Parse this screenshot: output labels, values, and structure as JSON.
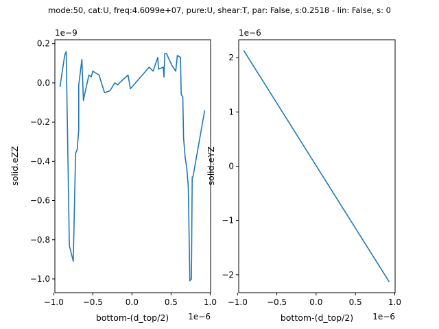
{
  "figure": {
    "suptitle": "mode:50, cat:U, freq:4.6099e+07, pure:U, shear:T, par: False, s:0.2518 - lin: False, s: 0"
  },
  "chart_data": [
    {
      "type": "line",
      "xlabel": "bottom-(d_top/2)",
      "ylabel": "solid.eZZ",
      "x_offset_label": "1e−6",
      "y_offset_label": "1e−9",
      "xlim": [
        -0.985,
        1.005
      ],
      "ylim": [
        -1.07,
        0.22
      ],
      "xticks": [
        -1.0,
        -0.5,
        0.0,
        0.5,
        1.0
      ],
      "xtick_labels": [
        "−1.0",
        "−0.5",
        "0.0",
        "0.5",
        "1.0"
      ],
      "yticks": [
        -1.0,
        -0.8,
        -0.6,
        -0.4,
        -0.2,
        0.0,
        0.2
      ],
      "ytick_labels": [
        "−1.0",
        "−0.8",
        "−0.6",
        "−0.4",
        "−0.2",
        "0.0",
        "0.2"
      ],
      "color": "#1f77b4",
      "grid": false,
      "series": [
        {
          "x": [
            -0.92,
            -0.86,
            -0.84,
            -0.8,
            -0.75,
            -0.72,
            -0.7,
            -0.68,
            -0.68,
            -0.64,
            -0.62,
            -0.6,
            -0.55,
            -0.52,
            -0.5,
            -0.42,
            -0.35,
            -0.28,
            -0.22,
            -0.18,
            -0.16,
            -0.05,
            -0.02,
            0.22,
            0.27,
            0.33,
            0.34,
            0.4,
            0.41,
            0.42,
            0.44,
            0.51,
            0.56,
            0.58,
            0.62,
            0.63,
            0.65,
            0.66,
            0.68,
            0.7,
            0.72,
            0.74,
            0.76,
            0.76,
            0.77,
            0.78,
            0.93
          ],
          "y": [
            -0.02,
            0.14,
            0.16,
            -0.83,
            -0.91,
            -0.36,
            -0.34,
            -0.24,
            -0.01,
            0.12,
            -0.09,
            -0.05,
            0.04,
            0.03,
            0.06,
            0.04,
            -0.05,
            -0.04,
            0.0,
            -0.01,
            0.0,
            0.04,
            -0.03,
            0.08,
            0.06,
            0.13,
            0.07,
            0.08,
            0.03,
            0.15,
            0.15,
            0.09,
            0.06,
            0.14,
            0.13,
            -0.06,
            -0.07,
            -0.28,
            -0.38,
            -0.43,
            -0.53,
            -1.01,
            -1.0,
            -0.98,
            -0.48,
            -0.48,
            -0.14
          ]
        }
      ]
    },
    {
      "type": "line",
      "xlabel": "bottom-(d_top/2)",
      "ylabel": "solid.eYZ",
      "x_offset_label": "1e−6",
      "y_offset_label": "1e−6",
      "xlim": [
        -0.985,
        1.005
      ],
      "ylim": [
        -2.33,
        2.33
      ],
      "xticks": [
        -1.0,
        -0.5,
        0.0,
        0.5,
        1.0
      ],
      "xtick_labels": [
        "−1.0",
        "−0.5",
        "0.0",
        "0.5",
        "1.0"
      ],
      "yticks": [
        -2,
        -1,
        0,
        1,
        2
      ],
      "ytick_labels": [
        "−2",
        "−1",
        "0",
        "1",
        "2"
      ],
      "color": "#1f77b4",
      "grid": false,
      "series": [
        {
          "x": [
            -0.92,
            0.93
          ],
          "y": [
            2.13,
            -2.13
          ]
        }
      ]
    }
  ]
}
